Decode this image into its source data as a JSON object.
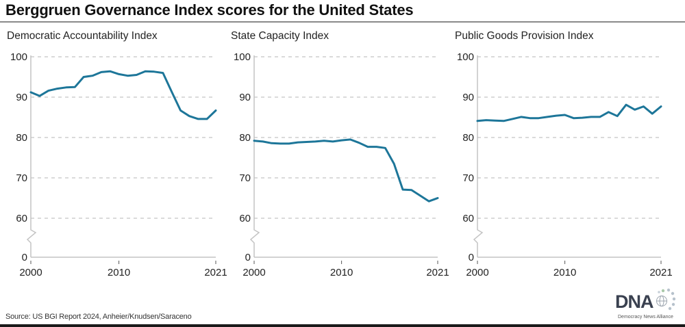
{
  "title": "Berggruen Governance Index scores for the United States",
  "source": "Source: US BGI Report 2024, Anheier/Knudsen/Saraceno",
  "logo": {
    "mark": "DNA",
    "subtitle": "Democracy News Alliance"
  },
  "colors": {
    "line": "#1d7699",
    "grid": "#b5b5b5",
    "axis": "#c4c4c4"
  },
  "chart_data": [
    {
      "type": "line",
      "title": "Democratic Accountability Index",
      "xlabel": "",
      "ylabel": "",
      "x": [
        2000,
        2001,
        2002,
        2003,
        2004,
        2005,
        2006,
        2007,
        2008,
        2009,
        2010,
        2011,
        2012,
        2013,
        2014,
        2015,
        2016,
        2017,
        2018,
        2019,
        2020,
        2021
      ],
      "values": [
        91.2,
        90.3,
        91.6,
        92.1,
        92.4,
        92.5,
        95.0,
        95.3,
        96.2,
        96.4,
        95.7,
        95.3,
        95.5,
        96.4,
        96.3,
        96.0,
        91.3,
        86.7,
        85.3,
        84.6,
        84.6,
        86.7
      ],
      "ylim": [
        0,
        100
      ],
      "yticks": [
        0,
        60,
        70,
        80,
        90,
        100
      ],
      "ytick_labels": [
        "0",
        "60",
        "70",
        "80",
        "90",
        "100"
      ],
      "xticks": [
        2000,
        2010,
        2021
      ],
      "xtick_labels": [
        "2000",
        "2010",
        "2021"
      ],
      "axis_break": true,
      "grid": true
    },
    {
      "type": "line",
      "title": "State Capacity Index",
      "xlabel": "",
      "ylabel": "",
      "x": [
        2000,
        2001,
        2002,
        2003,
        2004,
        2005,
        2006,
        2007,
        2008,
        2009,
        2010,
        2011,
        2012,
        2013,
        2014,
        2015,
        2016,
        2017,
        2018,
        2019,
        2020,
        2021
      ],
      "values": [
        79.2,
        79.0,
        78.6,
        78.5,
        78.5,
        78.8,
        78.9,
        79.0,
        79.2,
        79.0,
        79.3,
        79.5,
        78.7,
        77.7,
        77.7,
        77.4,
        73.5,
        67.1,
        67.0,
        65.6,
        64.2,
        65.0
      ],
      "ylim": [
        0,
        100
      ],
      "yticks": [
        0,
        60,
        70,
        80,
        90,
        100
      ],
      "ytick_labels": [
        "0",
        "60",
        "70",
        "80",
        "90",
        "100"
      ],
      "xticks": [
        2000,
        2010,
        2021
      ],
      "xtick_labels": [
        "2000",
        "2010",
        "2021"
      ],
      "axis_break": true,
      "grid": true
    },
    {
      "type": "line",
      "title": "Public Goods Provision Index",
      "xlabel": "",
      "ylabel": "",
      "x": [
        2000,
        2001,
        2002,
        2003,
        2004,
        2005,
        2006,
        2007,
        2008,
        2009,
        2010,
        2011,
        2012,
        2013,
        2014,
        2015,
        2016,
        2017,
        2018,
        2019,
        2020,
        2021
      ],
      "values": [
        84.1,
        84.3,
        84.2,
        84.1,
        84.6,
        85.1,
        84.8,
        84.8,
        85.1,
        85.4,
        85.6,
        84.8,
        84.9,
        85.1,
        85.1,
        86.3,
        85.3,
        88.1,
        86.9,
        87.7,
        85.9,
        87.7
      ],
      "ylim": [
        0,
        100
      ],
      "yticks": [
        0,
        60,
        70,
        80,
        90,
        100
      ],
      "ytick_labels": [
        "0",
        "60",
        "70",
        "80",
        "90",
        "100"
      ],
      "xticks": [
        2000,
        2010,
        2021
      ],
      "xtick_labels": [
        "2000",
        "2010",
        "2021"
      ],
      "axis_break": true,
      "grid": true
    }
  ]
}
